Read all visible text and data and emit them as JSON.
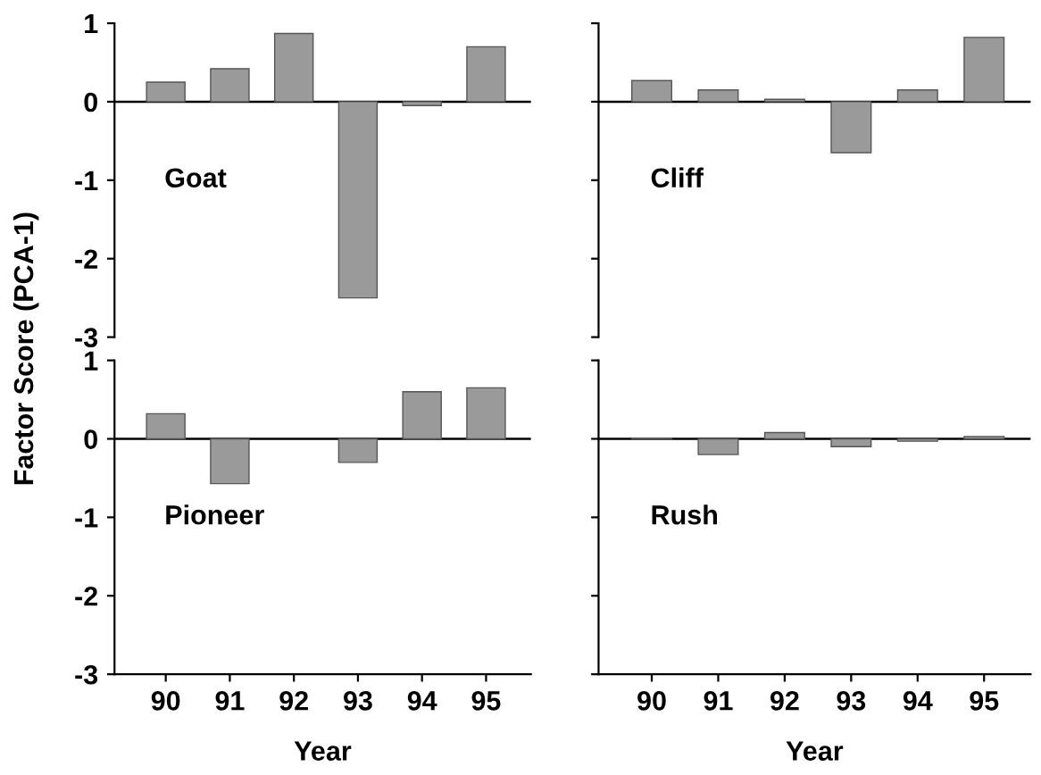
{
  "chart_data": [
    {
      "type": "bar",
      "title": "Goat",
      "ylabel": "Factor Score (PCA-1)",
      "categories": [
        "90",
        "91",
        "92",
        "93",
        "94",
        "95"
      ],
      "values": [
        0.25,
        0.42,
        0.87,
        -2.5,
        -0.05,
        0.7
      ],
      "color": "#9a9a9a",
      "ylim": [
        -3,
        1
      ],
      "yticks": [
        -3,
        -2,
        -1,
        0,
        1
      ],
      "tick_labels": "y",
      "ref_lines": [
        {
          "axis": "y",
          "value": 0
        }
      ]
    },
    {
      "type": "bar",
      "title": "Cliff",
      "categories": [
        "90",
        "91",
        "92",
        "93",
        "94",
        "95"
      ],
      "values": [
        0.27,
        0.15,
        0.03,
        -0.65,
        0.15,
        0.82
      ],
      "color": "#9a9a9a",
      "ylim": [
        -3,
        1
      ],
      "yticks": [
        -3,
        -2,
        -1,
        0,
        1
      ],
      "tick_labels": false,
      "ref_lines": [
        {
          "axis": "y",
          "value": 0
        }
      ]
    },
    {
      "type": "bar",
      "title": "Pioneer",
      "xlabel": "Year",
      "categories": [
        "90",
        "91",
        "92",
        "93",
        "94",
        "95"
      ],
      "values": [
        0.32,
        -0.57,
        null,
        -0.3,
        0.6,
        0.65
      ],
      "color": "#9a9a9a",
      "ylim": [
        -3,
        1
      ],
      "yticks": [
        -3,
        -2,
        -1,
        0,
        1
      ],
      "ref_lines": [
        {
          "axis": "y",
          "value": 0
        }
      ]
    },
    {
      "type": "bar",
      "title": "Rush",
      "xlabel": "Year",
      "categories": [
        "90",
        "91",
        "92",
        "93",
        "94",
        "95"
      ],
      "values": [
        0.01,
        -0.2,
        0.08,
        -0.1,
        -0.03,
        0.03
      ],
      "color": "#9a9a9a",
      "ylim": [
        -3,
        1
      ],
      "yticks": [
        -3,
        -2,
        -1,
        0,
        1
      ],
      "tick_labels": "x",
      "ref_lines": [
        {
          "axis": "y",
          "value": 0
        }
      ]
    }
  ]
}
